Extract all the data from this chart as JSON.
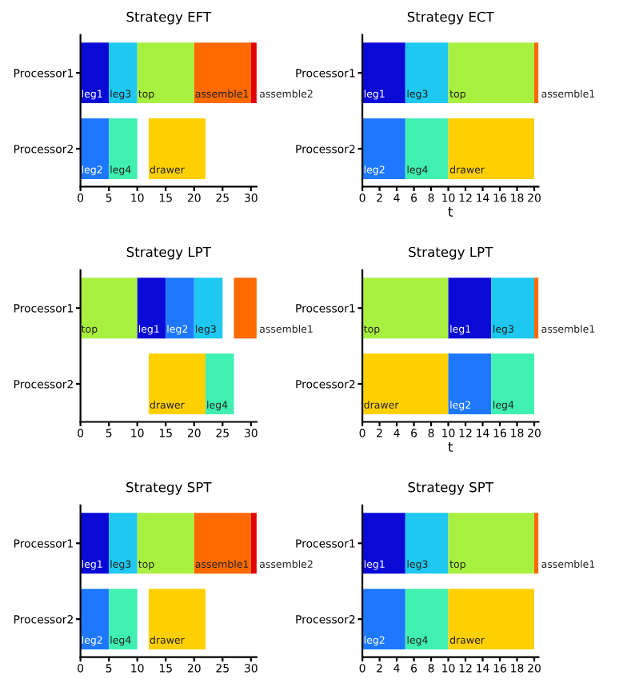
{
  "chart_data": [
    {
      "type": "bar",
      "title": "Strategy EFT",
      "orientation": "horizontal",
      "categories": [
        "Processor1",
        "Processor2"
      ],
      "xlim": [
        0,
        31
      ],
      "xticks": [
        0,
        5,
        10,
        15,
        20,
        25,
        30
      ],
      "grid": false,
      "legend": false,
      "series": [
        {
          "name": "leg1",
          "color": "#0a0ad6",
          "values": [
            5,
            null
          ],
          "base": [
            0,
            null
          ]
        },
        {
          "name": "leg3",
          "color": "#1ec8f0",
          "values": [
            5,
            null
          ],
          "base": [
            5,
            null
          ]
        },
        {
          "name": "top",
          "color": "#a8f040",
          "values": [
            10,
            null
          ],
          "base": [
            10,
            null
          ]
        },
        {
          "name": "assemble1",
          "color": "#ff6a00",
          "values": [
            10,
            null
          ],
          "base": [
            20,
            null
          ]
        },
        {
          "name": "assemble2",
          "color": "#e00000",
          "values": [
            1,
            null
          ],
          "base": [
            30,
            null
          ]
        },
        {
          "name": "leg2",
          "color": "#1e78ff",
          "values": [
            null,
            5
          ],
          "base": [
            null,
            0
          ]
        },
        {
          "name": "leg4",
          "color": "#40f0b0",
          "values": [
            null,
            5
          ],
          "base": [
            null,
            5
          ]
        },
        {
          "name": "drawer",
          "color": "#ffd000",
          "values": [
            null,
            10
          ],
          "base": [
            null,
            12
          ]
        }
      ]
    },
    {
      "type": "bar",
      "title": "Strategy ECT",
      "xlabel": "t",
      "orientation": "horizontal",
      "categories": [
        "Processor1",
        "Processor2"
      ],
      "xlim": [
        0,
        20.5
      ],
      "xticks": [
        0,
        2,
        4,
        6,
        8,
        10,
        12,
        14,
        16,
        18,
        20
      ],
      "grid": false,
      "legend": false,
      "series": [
        {
          "name": "leg1",
          "color": "#0a0ad6",
          "values": [
            5,
            null
          ],
          "base": [
            0,
            null
          ]
        },
        {
          "name": "leg3",
          "color": "#1ec8f0",
          "values": [
            5,
            null
          ],
          "base": [
            5,
            null
          ]
        },
        {
          "name": "top",
          "color": "#a8f040",
          "values": [
            10,
            null
          ],
          "base": [
            10,
            null
          ]
        },
        {
          "name": "assemble1",
          "color": "#ff6a00",
          "values": [
            0.5,
            null
          ],
          "base": [
            20,
            null
          ]
        },
        {
          "name": "leg2",
          "color": "#1e78ff",
          "values": [
            null,
            5
          ],
          "base": [
            null,
            0
          ]
        },
        {
          "name": "leg4",
          "color": "#40f0b0",
          "values": [
            null,
            5
          ],
          "base": [
            null,
            5
          ]
        },
        {
          "name": "drawer",
          "color": "#ffd000",
          "values": [
            null,
            10
          ],
          "base": [
            null,
            10
          ]
        }
      ]
    },
    {
      "type": "bar",
      "title": "Strategy LPT",
      "orientation": "horizontal",
      "categories": [
        "Processor1",
        "Processor2"
      ],
      "xlim": [
        0,
        31
      ],
      "xticks": [
        0,
        5,
        10,
        15,
        20,
        25,
        30
      ],
      "grid": false,
      "legend": false,
      "series": [
        {
          "name": "top",
          "color": "#a8f040",
          "values": [
            10,
            null
          ],
          "base": [
            0,
            null
          ]
        },
        {
          "name": "leg1",
          "color": "#0a0ad6",
          "values": [
            5,
            null
          ],
          "base": [
            10,
            null
          ]
        },
        {
          "name": "leg2",
          "color": "#1e78ff",
          "values": [
            5,
            null
          ],
          "base": [
            15,
            null
          ]
        },
        {
          "name": "leg3",
          "color": "#1ec8f0",
          "values": [
            5,
            null
          ],
          "base": [
            20,
            null
          ]
        },
        {
          "name": "assemble1",
          "color": "#ff6a00",
          "values": [
            4,
            null
          ],
          "base": [
            27,
            null
          ]
        },
        {
          "name": "drawer",
          "color": "#ffd000",
          "values": [
            null,
            10
          ],
          "base": [
            null,
            12
          ]
        },
        {
          "name": "leg4",
          "color": "#40f0b0",
          "values": [
            null,
            5
          ],
          "base": [
            null,
            22
          ]
        }
      ]
    },
    {
      "type": "bar",
      "title": "Strategy LPT",
      "xlabel": "t",
      "orientation": "horizontal",
      "categories": [
        "Processor1",
        "Processor2"
      ],
      "xlim": [
        0,
        20.5
      ],
      "xticks": [
        0,
        2,
        4,
        6,
        8,
        10,
        12,
        14,
        16,
        18,
        20
      ],
      "grid": false,
      "legend": false,
      "series": [
        {
          "name": "top",
          "color": "#a8f040",
          "values": [
            10,
            null
          ],
          "base": [
            0,
            null
          ]
        },
        {
          "name": "leg1",
          "color": "#0a0ad6",
          "values": [
            5,
            null
          ],
          "base": [
            10,
            null
          ]
        },
        {
          "name": "leg3",
          "color": "#1ec8f0",
          "values": [
            5,
            null
          ],
          "base": [
            15,
            null
          ]
        },
        {
          "name": "assemble1",
          "color": "#ff6a00",
          "values": [
            0.5,
            null
          ],
          "base": [
            20,
            null
          ]
        },
        {
          "name": "drawer",
          "color": "#ffd000",
          "values": [
            null,
            10
          ],
          "base": [
            null,
            0
          ]
        },
        {
          "name": "leg2",
          "color": "#1e78ff",
          "values": [
            null,
            5
          ],
          "base": [
            null,
            10
          ]
        },
        {
          "name": "leg4",
          "color": "#40f0b0",
          "values": [
            null,
            5
          ],
          "base": [
            null,
            15
          ]
        }
      ]
    },
    {
      "type": "bar",
      "title": "Strategy SPT",
      "orientation": "horizontal",
      "categories": [
        "Processor1",
        "Processor2"
      ],
      "xlim": [
        0,
        31
      ],
      "xticks": [
        0,
        5,
        10,
        15,
        20,
        25,
        30
      ],
      "grid": false,
      "legend": false,
      "series": [
        {
          "name": "leg1",
          "color": "#0a0ad6",
          "values": [
            5,
            null
          ],
          "base": [
            0,
            null
          ]
        },
        {
          "name": "leg3",
          "color": "#1ec8f0",
          "values": [
            5,
            null
          ],
          "base": [
            5,
            null
          ]
        },
        {
          "name": "top",
          "color": "#a8f040",
          "values": [
            10,
            null
          ],
          "base": [
            10,
            null
          ]
        },
        {
          "name": "assemble1",
          "color": "#ff6a00",
          "values": [
            10,
            null
          ],
          "base": [
            20,
            null
          ]
        },
        {
          "name": "assemble2",
          "color": "#e00000",
          "values": [
            1,
            null
          ],
          "base": [
            30,
            null
          ]
        },
        {
          "name": "leg2",
          "color": "#1e78ff",
          "values": [
            null,
            5
          ],
          "base": [
            null,
            0
          ]
        },
        {
          "name": "leg4",
          "color": "#40f0b0",
          "values": [
            null,
            5
          ],
          "base": [
            null,
            5
          ]
        },
        {
          "name": "drawer",
          "color": "#ffd000",
          "values": [
            null,
            10
          ],
          "base": [
            null,
            12
          ]
        }
      ]
    },
    {
      "type": "bar",
      "title": "Strategy SPT",
      "orientation": "horizontal",
      "categories": [
        "Processor1",
        "Processor2"
      ],
      "xlim": [
        0,
        20.5
      ],
      "xticks": [
        0,
        2,
        4,
        6,
        8,
        10,
        12,
        14,
        16,
        18,
        20
      ],
      "grid": false,
      "legend": false,
      "series": [
        {
          "name": "leg1",
          "color": "#0a0ad6",
          "values": [
            5,
            null
          ],
          "base": [
            0,
            null
          ]
        },
        {
          "name": "leg3",
          "color": "#1ec8f0",
          "values": [
            5,
            null
          ],
          "base": [
            5,
            null
          ]
        },
        {
          "name": "top",
          "color": "#a8f040",
          "values": [
            10,
            null
          ],
          "base": [
            10,
            null
          ]
        },
        {
          "name": "assemble1",
          "color": "#ff6a00",
          "values": [
            0.5,
            null
          ],
          "base": [
            20,
            null
          ]
        },
        {
          "name": "leg2",
          "color": "#1e78ff",
          "values": [
            null,
            5
          ],
          "base": [
            null,
            0
          ]
        },
        {
          "name": "leg4",
          "color": "#40f0b0",
          "values": [
            null,
            5
          ],
          "base": [
            null,
            5
          ]
        },
        {
          "name": "drawer",
          "color": "#ffd000",
          "values": [
            null,
            10
          ],
          "base": [
            null,
            10
          ]
        }
      ]
    }
  ]
}
